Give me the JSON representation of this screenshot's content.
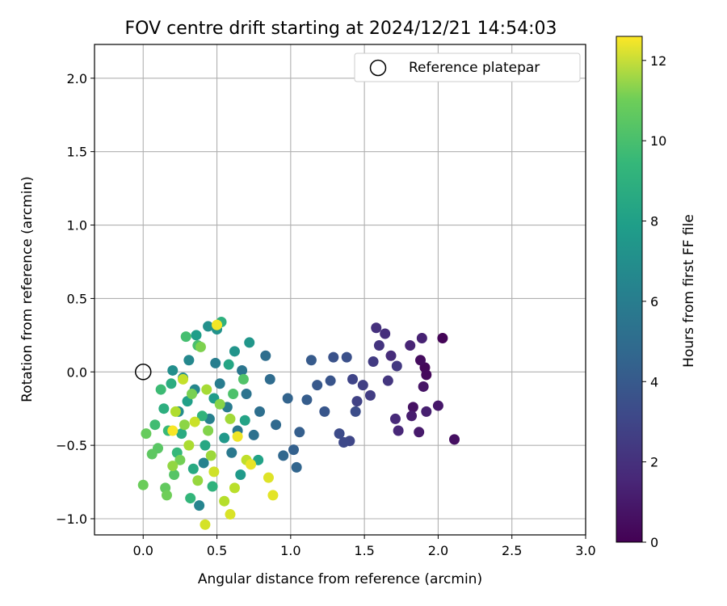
{
  "chart_data": {
    "type": "scatter",
    "title": "FOV centre drift starting at 2024/12/21 14:54:03",
    "xlabel": "Angular distance from reference (arcmin)",
    "ylabel": "Rotation from reference (arcmin)",
    "xlim": [
      -0.33,
      3.0
    ],
    "ylim": [
      -1.11,
      2.23
    ],
    "xticks": [
      0.0,
      0.5,
      1.0,
      1.5,
      2.0,
      2.5,
      3.0
    ],
    "xtick_labels": [
      "0.0",
      "0.5",
      "1.0",
      "1.5",
      "2.0",
      "2.5",
      "3.0"
    ],
    "yticks": [
      -1.0,
      -0.5,
      0.0,
      0.5,
      1.0,
      1.5,
      2.0
    ],
    "ytick_labels": [
      "−1.0",
      "−0.5",
      "0.0",
      "0.5",
      "1.0",
      "1.5",
      "2.0"
    ],
    "grid": true,
    "legend": {
      "placement": "upper right",
      "label": "Reference platepar",
      "marker": "open-circle"
    },
    "reference_point": {
      "x": 0.0,
      "y": 0.0
    },
    "colorbar": {
      "label": "Hours from first FF file",
      "colormap": "viridis",
      "range": [
        0,
        12.6
      ],
      "ticks": [
        0,
        2,
        4,
        6,
        8,
        10,
        12
      ],
      "tick_labels": [
        "0",
        "2",
        "4",
        "6",
        "8",
        "10",
        "12"
      ]
    },
    "points": [
      {
        "x": 2.03,
        "y": 0.23,
        "h": 0.1
      },
      {
        "x": 1.91,
        "y": 0.03,
        "h": 0.2
      },
      {
        "x": 1.92,
        "y": -0.02,
        "h": 0.3
      },
      {
        "x": 1.88,
        "y": 0.08,
        "h": 0.4
      },
      {
        "x": 2.11,
        "y": -0.46,
        "h": 0.5
      },
      {
        "x": 1.83,
        "y": -0.24,
        "h": 0.6
      },
      {
        "x": 1.9,
        "y": -0.1,
        "h": 0.7
      },
      {
        "x": 2.0,
        "y": -0.23,
        "h": 0.8
      },
      {
        "x": 1.87,
        "y": -0.41,
        "h": 0.9
      },
      {
        "x": 1.82,
        "y": -0.3,
        "h": 1.0
      },
      {
        "x": 1.92,
        "y": -0.27,
        "h": 1.1
      },
      {
        "x": 1.89,
        "y": 0.23,
        "h": 1.2
      },
      {
        "x": 1.81,
        "y": 0.18,
        "h": 1.3
      },
      {
        "x": 1.73,
        "y": -0.4,
        "h": 1.4
      },
      {
        "x": 1.71,
        "y": -0.32,
        "h": 1.5
      },
      {
        "x": 1.68,
        "y": 0.11,
        "h": 1.6
      },
      {
        "x": 1.64,
        "y": 0.26,
        "h": 1.7
      },
      {
        "x": 1.58,
        "y": 0.3,
        "h": 1.8
      },
      {
        "x": 1.6,
        "y": 0.18,
        "h": 1.9
      },
      {
        "x": 1.66,
        "y": -0.06,
        "h": 2.0
      },
      {
        "x": 1.72,
        "y": 0.04,
        "h": 2.1
      },
      {
        "x": 1.56,
        "y": 0.07,
        "h": 2.2
      },
      {
        "x": 1.54,
        "y": -0.16,
        "h": 2.3
      },
      {
        "x": 1.49,
        "y": -0.09,
        "h": 2.4
      },
      {
        "x": 1.45,
        "y": -0.2,
        "h": 2.5
      },
      {
        "x": 1.42,
        "y": -0.05,
        "h": 2.6
      },
      {
        "x": 1.4,
        "y": -0.47,
        "h": 2.7
      },
      {
        "x": 1.36,
        "y": -0.48,
        "h": 2.8
      },
      {
        "x": 1.33,
        "y": -0.42,
        "h": 2.9
      },
      {
        "x": 1.44,
        "y": -0.27,
        "h": 3.0
      },
      {
        "x": 1.38,
        "y": 0.1,
        "h": 3.1
      },
      {
        "x": 1.29,
        "y": 0.1,
        "h": 3.2
      },
      {
        "x": 1.27,
        "y": -0.06,
        "h": 3.3
      },
      {
        "x": 1.23,
        "y": -0.27,
        "h": 3.4
      },
      {
        "x": 1.18,
        "y": -0.09,
        "h": 3.5
      },
      {
        "x": 1.14,
        "y": 0.08,
        "h": 3.6
      },
      {
        "x": 1.11,
        "y": -0.19,
        "h": 3.7
      },
      {
        "x": 1.06,
        "y": -0.41,
        "h": 3.8
      },
      {
        "x": 1.02,
        "y": -0.53,
        "h": 3.9
      },
      {
        "x": 0.98,
        "y": -0.18,
        "h": 4.0
      },
      {
        "x": 1.04,
        "y": -0.65,
        "h": 4.1
      },
      {
        "x": 0.95,
        "y": -0.57,
        "h": 4.2
      },
      {
        "x": 0.9,
        "y": -0.36,
        "h": 4.3
      },
      {
        "x": 0.86,
        "y": -0.05,
        "h": 4.4
      },
      {
        "x": 0.83,
        "y": 0.11,
        "h": 4.5
      },
      {
        "x": 0.79,
        "y": -0.27,
        "h": 4.6
      },
      {
        "x": 0.75,
        "y": -0.43,
        "h": 4.7
      },
      {
        "x": 0.7,
        "y": -0.15,
        "h": 4.8
      },
      {
        "x": 0.67,
        "y": 0.01,
        "h": 4.9
      },
      {
        "x": 0.64,
        "y": -0.4,
        "h": 5.0
      },
      {
        "x": 0.6,
        "y": -0.55,
        "h": 5.1
      },
      {
        "x": 0.57,
        "y": -0.24,
        "h": 5.2
      },
      {
        "x": 0.52,
        "y": -0.08,
        "h": 5.3
      },
      {
        "x": 0.49,
        "y": 0.06,
        "h": 5.4
      },
      {
        "x": 0.45,
        "y": -0.32,
        "h": 5.5
      },
      {
        "x": 0.41,
        "y": -0.62,
        "h": 5.6
      },
      {
        "x": 0.38,
        "y": -0.91,
        "h": 5.7
      },
      {
        "x": 0.35,
        "y": -0.12,
        "h": 5.8
      },
      {
        "x": 0.31,
        "y": 0.08,
        "h": 5.9
      },
      {
        "x": 0.27,
        "y": -0.04,
        "h": 6.0
      },
      {
        "x": 0.24,
        "y": -0.27,
        "h": 6.1
      },
      {
        "x": 0.2,
        "y": 0.01,
        "h": 6.2
      },
      {
        "x": 0.44,
        "y": 0.31,
        "h": 6.3
      },
      {
        "x": 0.5,
        "y": 0.29,
        "h": 6.4
      },
      {
        "x": 0.62,
        "y": 0.14,
        "h": 6.5
      },
      {
        "x": 0.72,
        "y": 0.2,
        "h": 6.6
      },
      {
        "x": 0.55,
        "y": -0.45,
        "h": 6.7
      },
      {
        "x": 0.66,
        "y": -0.7,
        "h": 6.8
      },
      {
        "x": 0.48,
        "y": -0.18,
        "h": 6.9
      },
      {
        "x": 0.36,
        "y": 0.25,
        "h": 7.0
      },
      {
        "x": 0.3,
        "y": -0.2,
        "h": 7.1
      },
      {
        "x": 0.78,
        "y": -0.6,
        "h": 7.2
      },
      {
        "x": 0.69,
        "y": -0.33,
        "h": 7.3
      },
      {
        "x": 0.58,
        "y": 0.05,
        "h": 7.4
      },
      {
        "x": 0.42,
        "y": -0.5,
        "h": 7.5
      },
      {
        "x": 0.34,
        "y": -0.66,
        "h": 7.6
      },
      {
        "x": 0.26,
        "y": -0.42,
        "h": 7.7
      },
      {
        "x": 0.19,
        "y": -0.08,
        "h": 7.8
      },
      {
        "x": 0.14,
        "y": -0.25,
        "h": 7.9
      },
      {
        "x": 0.53,
        "y": 0.34,
        "h": 8.0
      },
      {
        "x": 0.47,
        "y": -0.78,
        "h": 8.1
      },
      {
        "x": 0.4,
        "y": -0.3,
        "h": 8.2
      },
      {
        "x": 0.32,
        "y": -0.86,
        "h": 8.3
      },
      {
        "x": 0.23,
        "y": -0.55,
        "h": 8.4
      },
      {
        "x": 0.17,
        "y": -0.4,
        "h": 8.5
      },
      {
        "x": 0.12,
        "y": -0.12,
        "h": 8.6
      },
      {
        "x": 0.08,
        "y": -0.36,
        "h": 8.7
      },
      {
        "x": 0.29,
        "y": 0.24,
        "h": 8.8
      },
      {
        "x": 0.37,
        "y": 0.18,
        "h": 8.9
      },
      {
        "x": 0.61,
        "y": -0.15,
        "h": 9.0
      },
      {
        "x": 0.68,
        "y": -0.05,
        "h": 9.1
      },
      {
        "x": 0.21,
        "y": -0.7,
        "h": 9.2
      },
      {
        "x": 0.1,
        "y": -0.52,
        "h": 9.3
      },
      {
        "x": 0.06,
        "y": -0.56,
        "h": 9.4
      },
      {
        "x": 0.15,
        "y": -0.79,
        "h": 9.5
      },
      {
        "x": 0.02,
        "y": -0.42,
        "h": 9.6
      },
      {
        "x": 0.0,
        "y": -0.77,
        "h": 9.7
      },
      {
        "x": 0.16,
        "y": -0.84,
        "h": 9.8
      },
      {
        "x": 0.25,
        "y": -0.6,
        "h": 9.9
      },
      {
        "x": 0.33,
        "y": -0.15,
        "h": 10.0
      },
      {
        "x": 0.39,
        "y": 0.17,
        "h": 10.1
      },
      {
        "x": 0.44,
        "y": -0.4,
        "h": 10.2
      },
      {
        "x": 0.52,
        "y": -0.22,
        "h": 10.3
      },
      {
        "x": 0.28,
        "y": -0.36,
        "h": 10.4
      },
      {
        "x": 0.2,
        "y": -0.64,
        "h": 10.5
      },
      {
        "x": 0.37,
        "y": -0.74,
        "h": 10.6
      },
      {
        "x": 0.46,
        "y": -0.57,
        "h": 10.7
      },
      {
        "x": 0.59,
        "y": -0.32,
        "h": 10.8
      },
      {
        "x": 0.43,
        "y": -0.12,
        "h": 10.9
      },
      {
        "x": 0.31,
        "y": -0.5,
        "h": 11.0
      },
      {
        "x": 0.22,
        "y": -0.27,
        "h": 11.1
      },
      {
        "x": 0.55,
        "y": -0.88,
        "h": 11.2
      },
      {
        "x": 0.62,
        "y": -0.79,
        "h": 11.3
      },
      {
        "x": 0.7,
        "y": -0.6,
        "h": 11.4
      },
      {
        "x": 0.27,
        "y": -0.05,
        "h": 11.5
      },
      {
        "x": 0.35,
        "y": -0.34,
        "h": 11.6
      },
      {
        "x": 0.48,
        "y": -0.68,
        "h": 11.7
      },
      {
        "x": 0.42,
        "y": -1.04,
        "h": 11.8
      },
      {
        "x": 0.59,
        "y": -0.97,
        "h": 11.9
      },
      {
        "x": 0.85,
        "y": -0.72,
        "h": 12.0
      },
      {
        "x": 0.88,
        "y": -0.84,
        "h": 12.1
      },
      {
        "x": 0.73,
        "y": -0.63,
        "h": 12.2
      },
      {
        "x": 0.64,
        "y": -0.44,
        "h": 12.3
      },
      {
        "x": 0.5,
        "y": 0.32,
        "h": 12.4
      },
      {
        "x": 0.2,
        "y": -0.4,
        "h": 12.5
      }
    ]
  }
}
